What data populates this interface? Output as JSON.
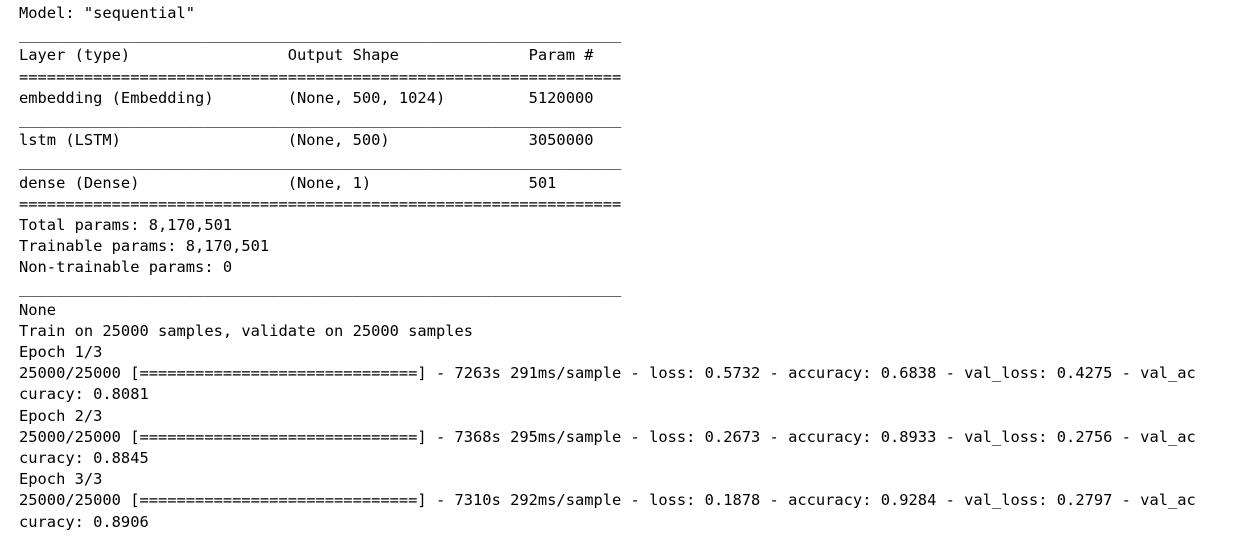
{
  "summary": {
    "model_line": "Model: \"sequential\"",
    "rule_top": "_________________________________________________________________",
    "header": "Layer (type)                 Output Shape              Param #   ",
    "double_rule_1": "=================================================================",
    "rows": [
      "embedding (Embedding)        (None, 500, 1024)         5120000   ",
      "_________________________________________________________________",
      "lstm (LSTM)                  (None, 500)               3050000   ",
      "_________________________________________________________________",
      "dense (Dense)                (None, 1)                 501       "
    ],
    "double_rule_2": "=================================================================",
    "total_params": "Total params: 8,170,501",
    "trainable_params": "Trainable params: 8,170,501",
    "non_trainable_params": "Non-trainable params: 0",
    "rule_bottom": "_________________________________________________________________"
  },
  "training": {
    "none_line": "None",
    "train_info": "Train on 25000 samples, validate on 25000 samples",
    "epochs": [
      {
        "label": "Epoch 1/3",
        "progress": "25000/25000 [==============================] - 7263s 291ms/sample - loss: 0.5732 - accuracy: 0.6838 - val_loss: 0.4275 - val_ac",
        "wrap": "curacy: 0.8081"
      },
      {
        "label": "Epoch 2/3",
        "progress": "25000/25000 [==============================] - 7368s 295ms/sample - loss: 0.2673 - accuracy: 0.8933 - val_loss: 0.2756 - val_ac",
        "wrap": "curacy: 0.8845"
      },
      {
        "label": "Epoch 3/3",
        "progress": "25000/25000 [==============================] - 7310s 292ms/sample - loss: 0.1878 - accuracy: 0.9284 - val_loss: 0.2797 - val_ac",
        "wrap": "curacy: 0.8906"
      }
    ]
  }
}
